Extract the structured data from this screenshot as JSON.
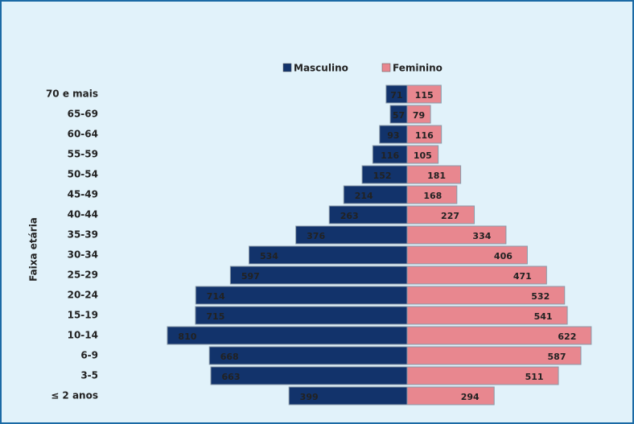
{
  "chart_data": {
    "type": "pyramid",
    "y_label": "Faixa etária",
    "categories": [
      "70 e mais",
      "65-69",
      "60-64",
      "55-59",
      "50-54",
      "45-49",
      "40-44",
      "35-39",
      "30-34",
      "25-29",
      "20-24",
      "15-19",
      "10-14",
      "6-9",
      "3-5",
      "≤ 2 anos"
    ],
    "series": [
      {
        "name": "Masculino",
        "color": "#12336b",
        "values": [
          71,
          57,
          93,
          116,
          152,
          214,
          263,
          376,
          534,
          597,
          714,
          715,
          810,
          668,
          663,
          399
        ]
      },
      {
        "name": "Feminino",
        "color": "#e8878f",
        "values": [
          115,
          79,
          116,
          105,
          181,
          168,
          227,
          334,
          406,
          471,
          532,
          541,
          622,
          587,
          511,
          294
        ]
      }
    ]
  }
}
